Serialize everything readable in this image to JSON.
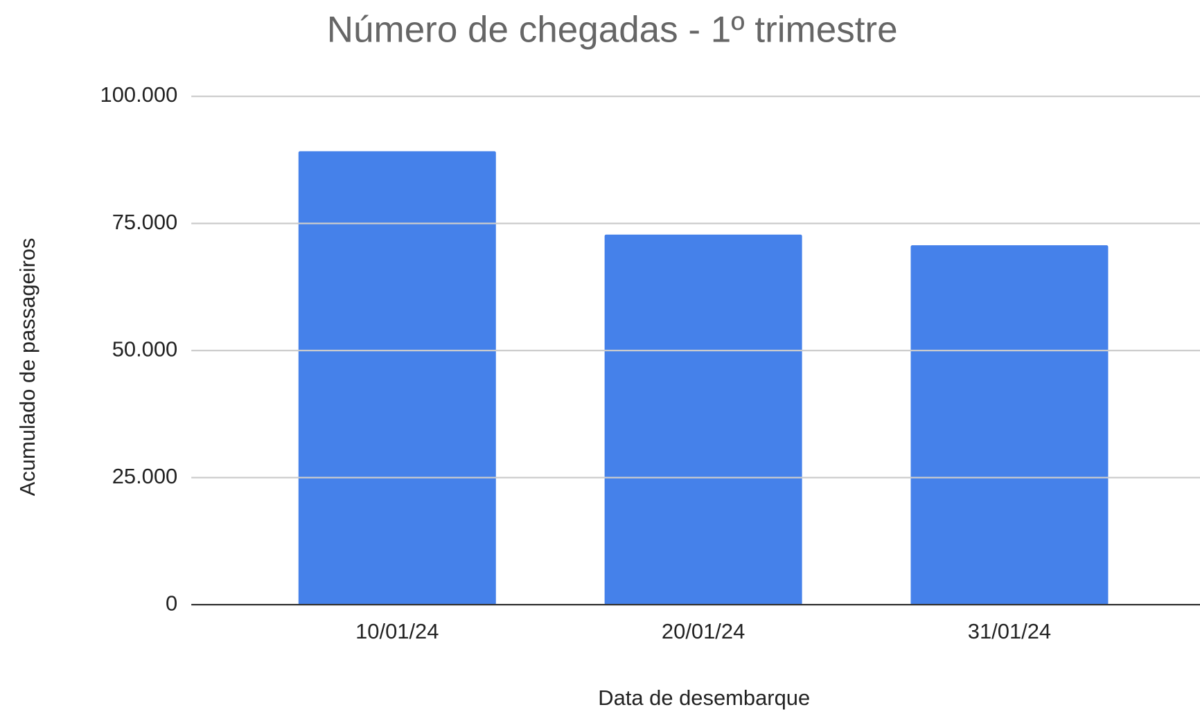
{
  "chart_data": {
    "type": "bar",
    "title": "Número de chegadas - 1º trimestre",
    "x_label": "Data de desembarque",
    "y_label": "Acumulado de passageiros",
    "categories": [
      "10/01/24",
      "20/01/24",
      "31/01/24"
    ],
    "values": [
      89200,
      72800,
      70700
    ],
    "color": "#4581ea",
    "ylim": [
      0,
      100000
    ],
    "yticks": [
      0,
      {
        "value": 25000,
        "label": "25.000"
      },
      {
        "value": 50000,
        "label": "50.000"
      },
      {
        "value": 75000,
        "label": "75.000"
      },
      {
        "value": 100000,
        "label": "100.000"
      }
    ],
    "grid": true
  }
}
